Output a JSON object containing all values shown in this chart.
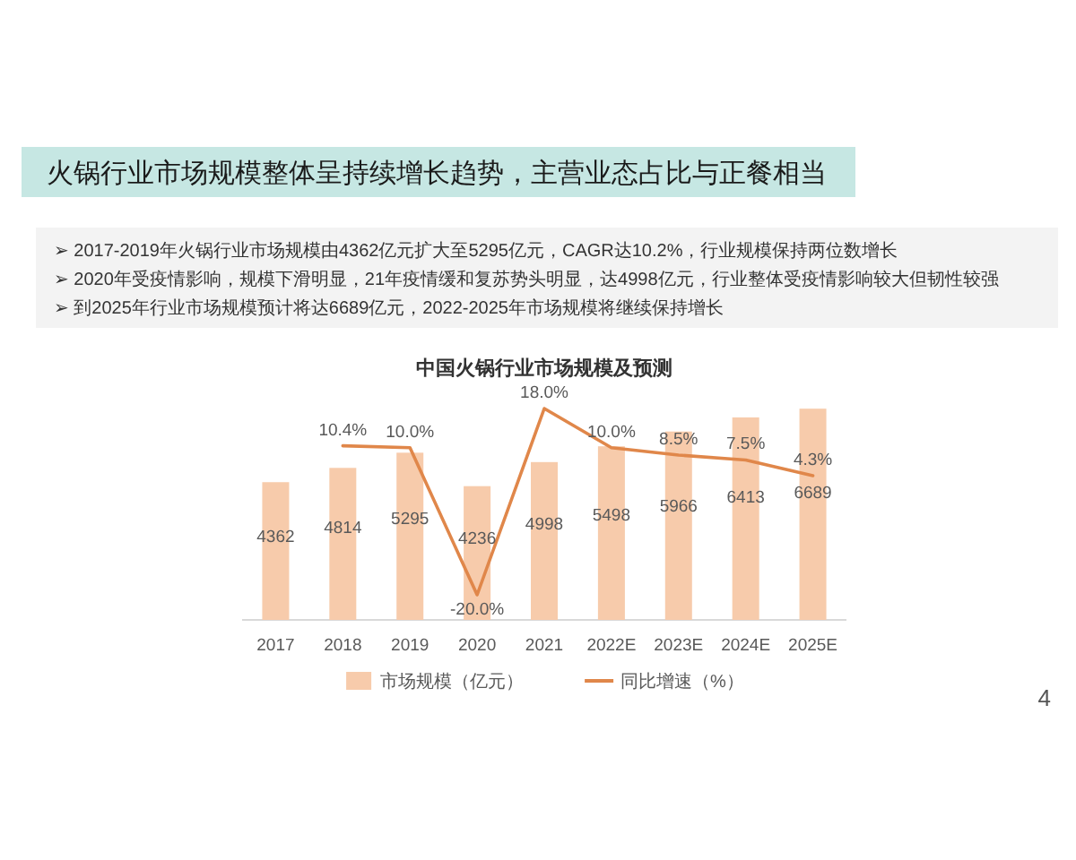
{
  "chart_data": {
    "type": "bar",
    "title": "火锅行业市场规模整体呈持续增长趋势，主营业态占比与正餐相当",
    "subtitle": "中国火锅行业市场规模及预测",
    "annotations": [
      "➢ 2017-2019年火锅行业市场规模由4362亿元扩大至5295亿元，CAGR达10.2%，行业规模保持两位数增长",
      "➢ 2020年受疫情影响，规模下滑明显，21年疫情缓和复苏势头明显，达4998亿元，行业整体受疫情影响较大但韧性较强",
      "➢ 到2025年行业市场规模预计将达6689亿元，2022-2025年市场规模将继续保持增长",
      "4"
    ],
    "categories": [
      "2017",
      "2018",
      "2019",
      "2020",
      "2021",
      "2022E",
      "2023E",
      "2024E",
      "2025E"
    ],
    "series": [
      {
        "name": "市场规模（亿元）",
        "color": "#f7cbab",
        "values": [
          4362,
          4814,
          5295,
          4236,
          4998,
          5498,
          5966,
          6413,
          6689
        ],
        "value_labels": [
          "4362",
          "4814",
          "5295",
          "4236",
          "4998",
          "5498",
          "5966",
          "6413",
          "6689"
        ]
      },
      {
        "name": "同比增速（%）",
        "type": "line",
        "axis": "y2",
        "color": "#e0874a",
        "values": [
          null,
          10.4,
          10.0,
          -20.0,
          18.0,
          10.0,
          8.5,
          7.5,
          4.3
        ],
        "value_labels": [
          null,
          "10.4%",
          "10.0%",
          "-20.0%",
          "18.0%",
          "10.0%",
          "8.5%",
          "7.5%",
          "4.3%"
        ]
      }
    ],
    "tick_labels": "x",
    "legend": "bottom"
  }
}
